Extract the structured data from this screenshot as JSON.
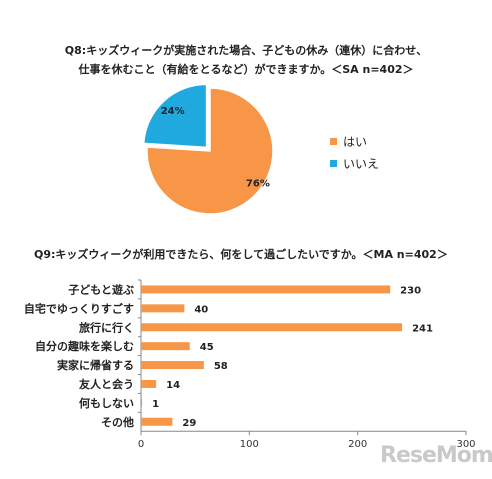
{
  "chart_data": [
    {
      "type": "pie",
      "title_line1": "Q8:キッズウィークが実施された場合、子どもの休み（連休）に合わせ、",
      "title_line2": "仕事を休むこと（有給をとるなど）ができますか。＜SA n=402＞",
      "slices": [
        {
          "label": "はい",
          "value": 76,
          "display": "76%",
          "color": "#F79646"
        },
        {
          "label": "いいえ",
          "value": 24,
          "display": "24%",
          "color": "#1FA9DF"
        }
      ],
      "legend_position": "right"
    },
    {
      "type": "bar",
      "orientation": "horizontal",
      "title": "Q9:キッズウィークが利用できたら、何をして過ごしたいですか。＜MA n=402＞",
      "categories": [
        "子どもと遊ぶ",
        "自宅でゆっくりすごす",
        "旅行に行く",
        "自分の趣味を楽しむ",
        "実家に帰省する",
        "友人と会う",
        "何もしない",
        "その他"
      ],
      "values": [
        230,
        40,
        241,
        45,
        58,
        14,
        1,
        29
      ],
      "xlim": [
        0,
        300
      ],
      "xticks": [
        0,
        100,
        200,
        300
      ],
      "bar_color": "#F79646",
      "grid": false
    }
  ],
  "watermark": "ReseMom"
}
